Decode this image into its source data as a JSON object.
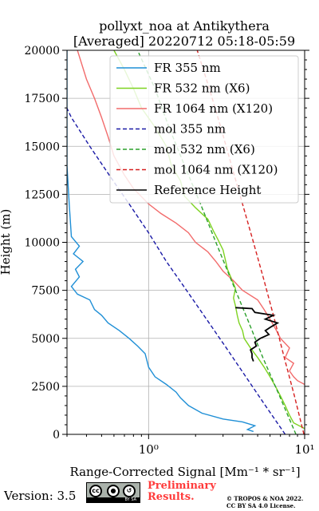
{
  "chart_data": {
    "type": "line",
    "title_line1": "pollyxt_noa at Antikythera",
    "title_line2": "[Averaged] 20220712 05:18-05:59",
    "xlabel": "Range-Corrected Signal [Mm⁻¹ * sr⁻¹]",
    "ylabel": "Height (m)",
    "xscale": "log",
    "xlim": [
      0.3,
      10
    ],
    "ylim": [
      0,
      20000
    ],
    "x_ticks": [
      {
        "value": 1,
        "label": "10⁰"
      },
      {
        "value": 10,
        "label": "10¹"
      }
    ],
    "y_ticks": [
      0,
      2500,
      5000,
      7500,
      10000,
      12500,
      15000,
      17500,
      20000
    ],
    "grid": true,
    "legend_position": "top-right",
    "series": [
      {
        "name": "FR 355 nm",
        "color": "#1f8fd6",
        "style": "solid",
        "points": [
          [
            4.7,
            150
          ],
          [
            4.3,
            250
          ],
          [
            4.8,
            450
          ],
          [
            4.0,
            650
          ],
          [
            3.0,
            800
          ],
          [
            2.2,
            1100
          ],
          [
            1.8,
            1500
          ],
          [
            1.6,
            1900
          ],
          [
            1.5,
            2200
          ],
          [
            1.3,
            2600
          ],
          [
            1.1,
            3000
          ],
          [
            1.0,
            3500
          ],
          [
            0.95,
            4200
          ],
          [
            0.85,
            4600
          ],
          [
            0.75,
            5000
          ],
          [
            0.65,
            5400
          ],
          [
            0.55,
            5800
          ],
          [
            0.5,
            6200
          ],
          [
            0.45,
            6500
          ],
          [
            0.42,
            7000
          ],
          [
            0.35,
            7300
          ],
          [
            0.32,
            7700
          ],
          [
            0.36,
            8200
          ],
          [
            0.34,
            8600
          ],
          [
            0.38,
            9000
          ],
          [
            0.33,
            9400
          ],
          [
            0.36,
            9800
          ],
          [
            0.32,
            10300
          ],
          [
            0.31,
            12000
          ],
          [
            0.3,
            14000
          ],
          [
            0.3,
            20000
          ]
        ]
      },
      {
        "name": "FR 532 nm (X6)",
        "color": "#7ed321",
        "style": "solid",
        "points": [
          [
            10.0,
            300
          ],
          [
            8.5,
            600
          ],
          [
            8.0,
            1000
          ],
          [
            7.5,
            1500
          ],
          [
            7.0,
            2000
          ],
          [
            6.5,
            2500
          ],
          [
            6.0,
            3000
          ],
          [
            5.5,
            3500
          ],
          [
            5.0,
            4000
          ],
          [
            4.5,
            4500
          ],
          [
            4.1,
            5000
          ],
          [
            4.0,
            5400
          ],
          [
            3.8,
            5800
          ],
          [
            3.7,
            6200
          ],
          [
            3.6,
            6700
          ],
          [
            3.5,
            7100
          ],
          [
            3.6,
            7600
          ],
          [
            3.4,
            8100
          ],
          [
            3.2,
            8600
          ],
          [
            3.1,
            9100
          ],
          [
            3.0,
            9600
          ],
          [
            2.8,
            10100
          ],
          [
            2.6,
            10600
          ],
          [
            2.4,
            11200
          ],
          [
            2.0,
            11800
          ],
          [
            1.7,
            12400
          ],
          [
            1.6,
            13200
          ],
          [
            1.4,
            14000
          ],
          [
            1.3,
            15000
          ],
          [
            1.1,
            16000
          ],
          [
            0.9,
            17000
          ],
          [
            0.8,
            18000
          ],
          [
            0.7,
            19000
          ],
          [
            0.6,
            20000
          ]
        ]
      },
      {
        "name": "FR 1064 nm (X120)",
        "color": "#f26b6b",
        "style": "solid",
        "points": [
          [
            10.0,
            2600
          ],
          [
            9.0,
            2800
          ],
          [
            8.5,
            3000
          ],
          [
            8.0,
            3300
          ],
          [
            8.5,
            3700
          ],
          [
            7.5,
            4000
          ],
          [
            8.0,
            4500
          ],
          [
            7.0,
            5000
          ],
          [
            6.5,
            5500
          ],
          [
            6.0,
            6000
          ],
          [
            5.5,
            6500
          ],
          [
            5.0,
            7000
          ],
          [
            4.0,
            7500
          ],
          [
            3.5,
            8000
          ],
          [
            3.0,
            8500
          ],
          [
            2.7,
            9000
          ],
          [
            2.4,
            9500
          ],
          [
            2.0,
            10000
          ],
          [
            1.8,
            10500
          ],
          [
            1.5,
            11000
          ],
          [
            1.2,
            11500
          ],
          [
            1.0,
            12000
          ],
          [
            0.8,
            12800
          ],
          [
            0.7,
            13500
          ],
          [
            0.6,
            14500
          ],
          [
            0.55,
            15500
          ],
          [
            0.5,
            16500
          ],
          [
            0.45,
            17500
          ],
          [
            0.4,
            18500
          ],
          [
            0.35,
            20000
          ]
        ]
      },
      {
        "name": "mol 355 nm",
        "color": "#1a1aa6",
        "style": "dashed",
        "points": [
          [
            7.5,
            0
          ],
          [
            5.6,
            1500
          ],
          [
            4.2,
            3000
          ],
          [
            3.15,
            4500
          ],
          [
            2.35,
            6000
          ],
          [
            1.75,
            7500
          ],
          [
            1.3,
            9000
          ],
          [
            1.0,
            10500
          ],
          [
            0.75,
            12000
          ],
          [
            0.56,
            13500
          ],
          [
            0.42,
            15000
          ],
          [
            0.32,
            16500
          ],
          [
            0.28,
            17500
          ]
        ]
      },
      {
        "name": "mol 532 nm (X6)",
        "color": "#2ca02c",
        "style": "dashed",
        "points": [
          [
            8.8,
            0
          ],
          [
            6.9,
            2000
          ],
          [
            5.4,
            4000
          ],
          [
            4.3,
            6000
          ],
          [
            3.4,
            8000
          ],
          [
            2.7,
            10000
          ],
          [
            2.15,
            12000
          ],
          [
            1.7,
            14000
          ],
          [
            1.35,
            16000
          ],
          [
            1.1,
            18000
          ],
          [
            0.85,
            20000
          ]
        ]
      },
      {
        "name": "mol 1064 nm (X120)",
        "color": "#d62020",
        "style": "dashed",
        "points": [
          [
            9.9,
            0
          ],
          [
            8.6,
            2000
          ],
          [
            7.4,
            4000
          ],
          [
            6.4,
            6000
          ],
          [
            5.5,
            8000
          ],
          [
            4.7,
            10000
          ],
          [
            4.0,
            12000
          ],
          [
            3.4,
            14000
          ],
          [
            2.9,
            16000
          ],
          [
            2.45,
            18000
          ],
          [
            2.05,
            20000
          ]
        ]
      },
      {
        "name": "Reference Height",
        "color": "#000000",
        "style": "solid",
        "points": [
          [
            3.6,
            6600
          ],
          [
            4.6,
            6550
          ],
          [
            4.8,
            6350
          ],
          [
            6.3,
            6200
          ],
          [
            5.6,
            6000
          ],
          [
            6.7,
            5800
          ],
          [
            6.1,
            5600
          ],
          [
            5.6,
            5400
          ],
          [
            5.9,
            5200
          ],
          [
            5.2,
            5000
          ],
          [
            4.8,
            4800
          ],
          [
            4.9,
            4600
          ],
          [
            4.5,
            4400
          ],
          [
            4.6,
            4200
          ],
          [
            4.6,
            4000
          ],
          [
            4.7,
            3800
          ]
        ]
      }
    ]
  },
  "footer": {
    "version": "Version: 3.5",
    "cc_by": "BY",
    "cc_sa": "SA",
    "preliminary_line1": "Preliminary",
    "preliminary_line2": "Results.",
    "copyright_line1": "© TROPOS & NOA 2022.",
    "copyright_line2": "CC BY SA 4.0 License."
  }
}
